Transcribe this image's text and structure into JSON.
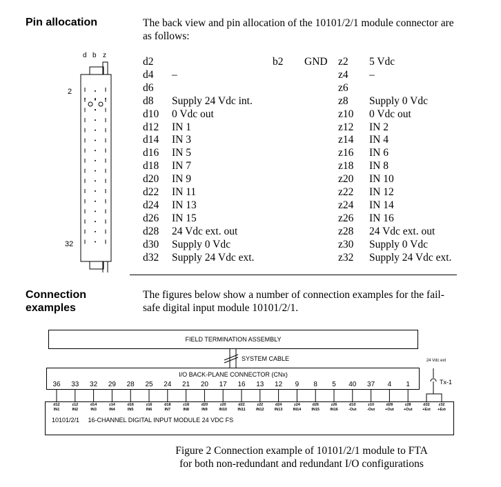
{
  "pin_section": {
    "heading": "Pin allocation",
    "intro": "The back view and pin allocation of the 10101/2/1 module connector are as follows:",
    "connector": {
      "columns": [
        "d",
        "b",
        "z"
      ],
      "first_row": "2",
      "last_row": "32"
    },
    "b_pin": {
      "pin": "b2",
      "label": "GND"
    },
    "rows": [
      {
        "d": "d2",
        "dl": "",
        "z": "z2",
        "zl": "5 Vdc"
      },
      {
        "d": "d4",
        "dl": "–",
        "z": "z4",
        "zl": "–"
      },
      {
        "d": "d6",
        "dl": "",
        "z": "z6",
        "zl": ""
      },
      {
        "d": "d8",
        "dl": "Supply 24 Vdc int.",
        "z": "z8",
        "zl": "Supply 0 Vdc"
      },
      {
        "d": "d10",
        "dl": "0 Vdc out",
        "z": "z10",
        "zl": "0 Vdc out"
      },
      {
        "d": "d12",
        "dl": "IN 1",
        "z": "z12",
        "zl": "IN 2"
      },
      {
        "d": "d14",
        "dl": "IN 3",
        "z": "z14",
        "zl": "IN 4"
      },
      {
        "d": "d16",
        "dl": "IN 5",
        "z": "z16",
        "zl": "IN 6"
      },
      {
        "d": "d18",
        "dl": "IN 7",
        "z": "z18",
        "zl": "IN 8"
      },
      {
        "d": "d20",
        "dl": "IN 9",
        "z": "z20",
        "zl": "IN 10"
      },
      {
        "d": "d22",
        "dl": "IN 11",
        "z": "z22",
        "zl": "IN 12"
      },
      {
        "d": "d24",
        "dl": "IN 13",
        "z": "z24",
        "zl": "IN 14"
      },
      {
        "d": "d26",
        "dl": "IN 15",
        "z": "z26",
        "zl": "IN 16"
      },
      {
        "d": "d28",
        "dl": "24 Vdc ext. out",
        "z": "z28",
        "zl": "24 Vdc ext. out"
      },
      {
        "d": "d30",
        "dl": "Supply 0 Vdc",
        "z": "z30",
        "zl": "Supply 0 Vdc"
      },
      {
        "d": "d32",
        "dl": "Supply 24 Vdc ext.",
        "z": "z32",
        "zl": "Supply 24 Vdc ext."
      }
    ]
  },
  "conn_section": {
    "heading": "Connection examples",
    "intro": "The figures below show a number of connection examples for the fail-safe digital input module 10101/2/1."
  },
  "figure": {
    "fta": "FIELD TERMINATION ASSEMBLY",
    "cable": "SYSTEM CABLE",
    "backplane": "I/O BACK-PLANE CONNECTOR (CNx)",
    "supply": "24 Vdc ext",
    "tx": "Tx-1",
    "module": "10101/2/1     16-CHANNEL DIGITAL INPUT MODULE 24 VDC FS",
    "pins": [
      {
        "n": "36",
        "p": "d12",
        "s": "IN1"
      },
      {
        "n": "33",
        "p": "z12",
        "s": "IN2"
      },
      {
        "n": "32",
        "p": "d14",
        "s": "IN3"
      },
      {
        "n": "29",
        "p": "z14",
        "s": "IN4"
      },
      {
        "n": "28",
        "p": "d16",
        "s": "IN5"
      },
      {
        "n": "25",
        "p": "z16",
        "s": "IN6"
      },
      {
        "n": "24",
        "p": "d18",
        "s": "IN7"
      },
      {
        "n": "21",
        "p": "z18",
        "s": "IN8"
      },
      {
        "n": "20",
        "p": "d20",
        "s": "IN9"
      },
      {
        "n": "17",
        "p": "z20",
        "s": "IN10"
      },
      {
        "n": "16",
        "p": "d22",
        "s": "IN11"
      },
      {
        "n": "13",
        "p": "z22",
        "s": "IN12"
      },
      {
        "n": "12",
        "p": "d24",
        "s": "IN13"
      },
      {
        "n": "9",
        "p": "z24",
        "s": "IN14"
      },
      {
        "n": "8",
        "p": "d26",
        "s": "IN15"
      },
      {
        "n": "5",
        "p": "z26",
        "s": "IN16"
      },
      {
        "n": "40",
        "p": "d10",
        "s": "-Out"
      },
      {
        "n": "37",
        "p": "z10",
        "s": "-Out"
      },
      {
        "n": "4",
        "p": "d28",
        "s": "+Out"
      },
      {
        "n": "1",
        "p": "z28",
        "s": "+Out"
      }
    ],
    "ext_pins": [
      {
        "p": "d32",
        "s": "+Ext"
      },
      {
        "p": "z32",
        "s": "+Ext"
      }
    ],
    "caption_1": "Figure 2   Connection example of 10101/2/1 module to FTA",
    "caption_2": "for both non-redundant and redundant I/O configurations"
  }
}
